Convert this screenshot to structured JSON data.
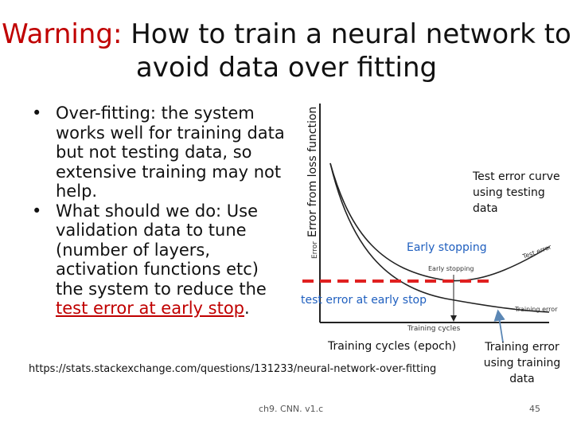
{
  "slide": {
    "title_warning": "Warning:",
    "title_rest": " How to train a neural network to avoid data over fitting",
    "bullets": [
      {
        "text": "Over-fitting: the system works well for training data but not testing data, so extensive training may not help."
      },
      {
        "text_before": "What should we do: Use validation data to tune (number of layers, activation functions etc) the system to reduce the ",
        "text_link": "test error at early stop",
        "text_after": "."
      }
    ],
    "figure": {
      "y_label": "Error from loss function",
      "inner_y_label": "Error",
      "inner_x_label": "Training cycles",
      "curve_labels": {
        "test_error": "Test error",
        "early_stopping": "Early stopping",
        "training_error": "Training error"
      },
      "annotations": {
        "test_error_note": "Test error curve using testing data",
        "early_stopping": "Early stopping",
        "test_error_at_stop": "test error at early stop",
        "x_axis_note": "Training cycles (epoch)",
        "training_error_note": "Training error using training data"
      },
      "colors": {
        "dashed_line": "#e02020",
        "annotation_blue": "#1f5fbf",
        "arrow": "#5b87b5"
      }
    },
    "source_url": "https://stats.stackexchange.com/questions/131233/neural-network-over-fitting",
    "footer_center": "ch9. CNN. v1.c",
    "page_number": "45"
  }
}
